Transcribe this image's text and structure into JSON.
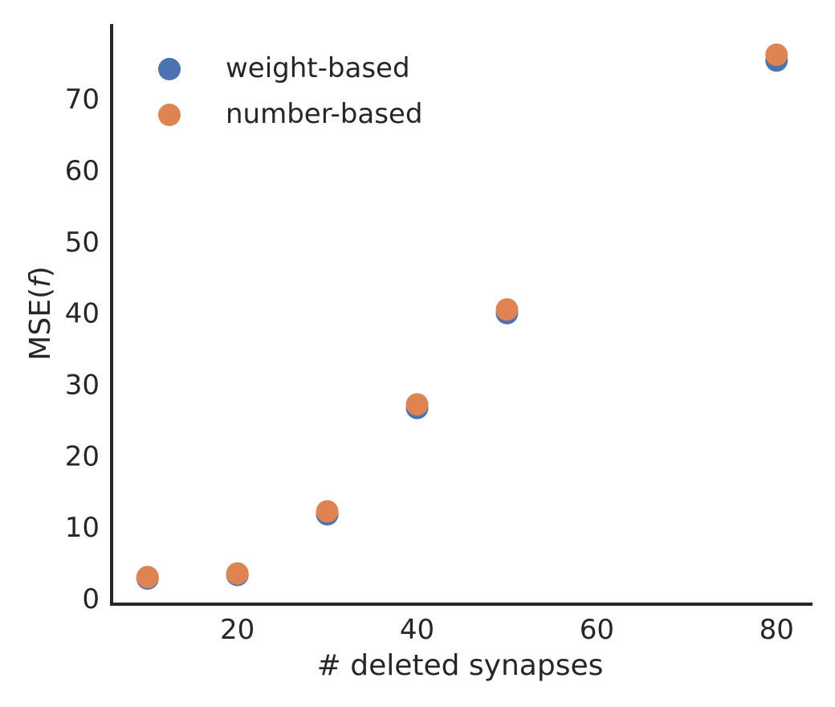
{
  "chart_data": {
    "type": "scatter",
    "title": "",
    "xlabel": "# deleted synapses",
    "ylabel_main": "MSE(",
    "ylabel_var": "f",
    "ylabel_close": ")",
    "xlim": [
      6,
      84
    ],
    "ylim": [
      -0.8,
      80.5
    ],
    "xticks": [
      20,
      40,
      60,
      80
    ],
    "yticks": [
      0,
      10,
      20,
      30,
      40,
      50,
      60,
      70
    ],
    "grid": false,
    "legend_position": "top-left",
    "series": [
      {
        "name": "weight-based",
        "color": "#4c72b0",
        "x": [
          10,
          20,
          30,
          40,
          50,
          80
        ],
        "y": [
          2.8,
          3.3,
          11.8,
          26.7,
          40.0,
          75.4
        ]
      },
      {
        "name": "number-based",
        "color": "#dd8452",
        "x": [
          10,
          20,
          30,
          40,
          50,
          80
        ],
        "y": [
          3.0,
          3.5,
          12.2,
          27.2,
          40.5,
          76.2
        ]
      }
    ]
  }
}
